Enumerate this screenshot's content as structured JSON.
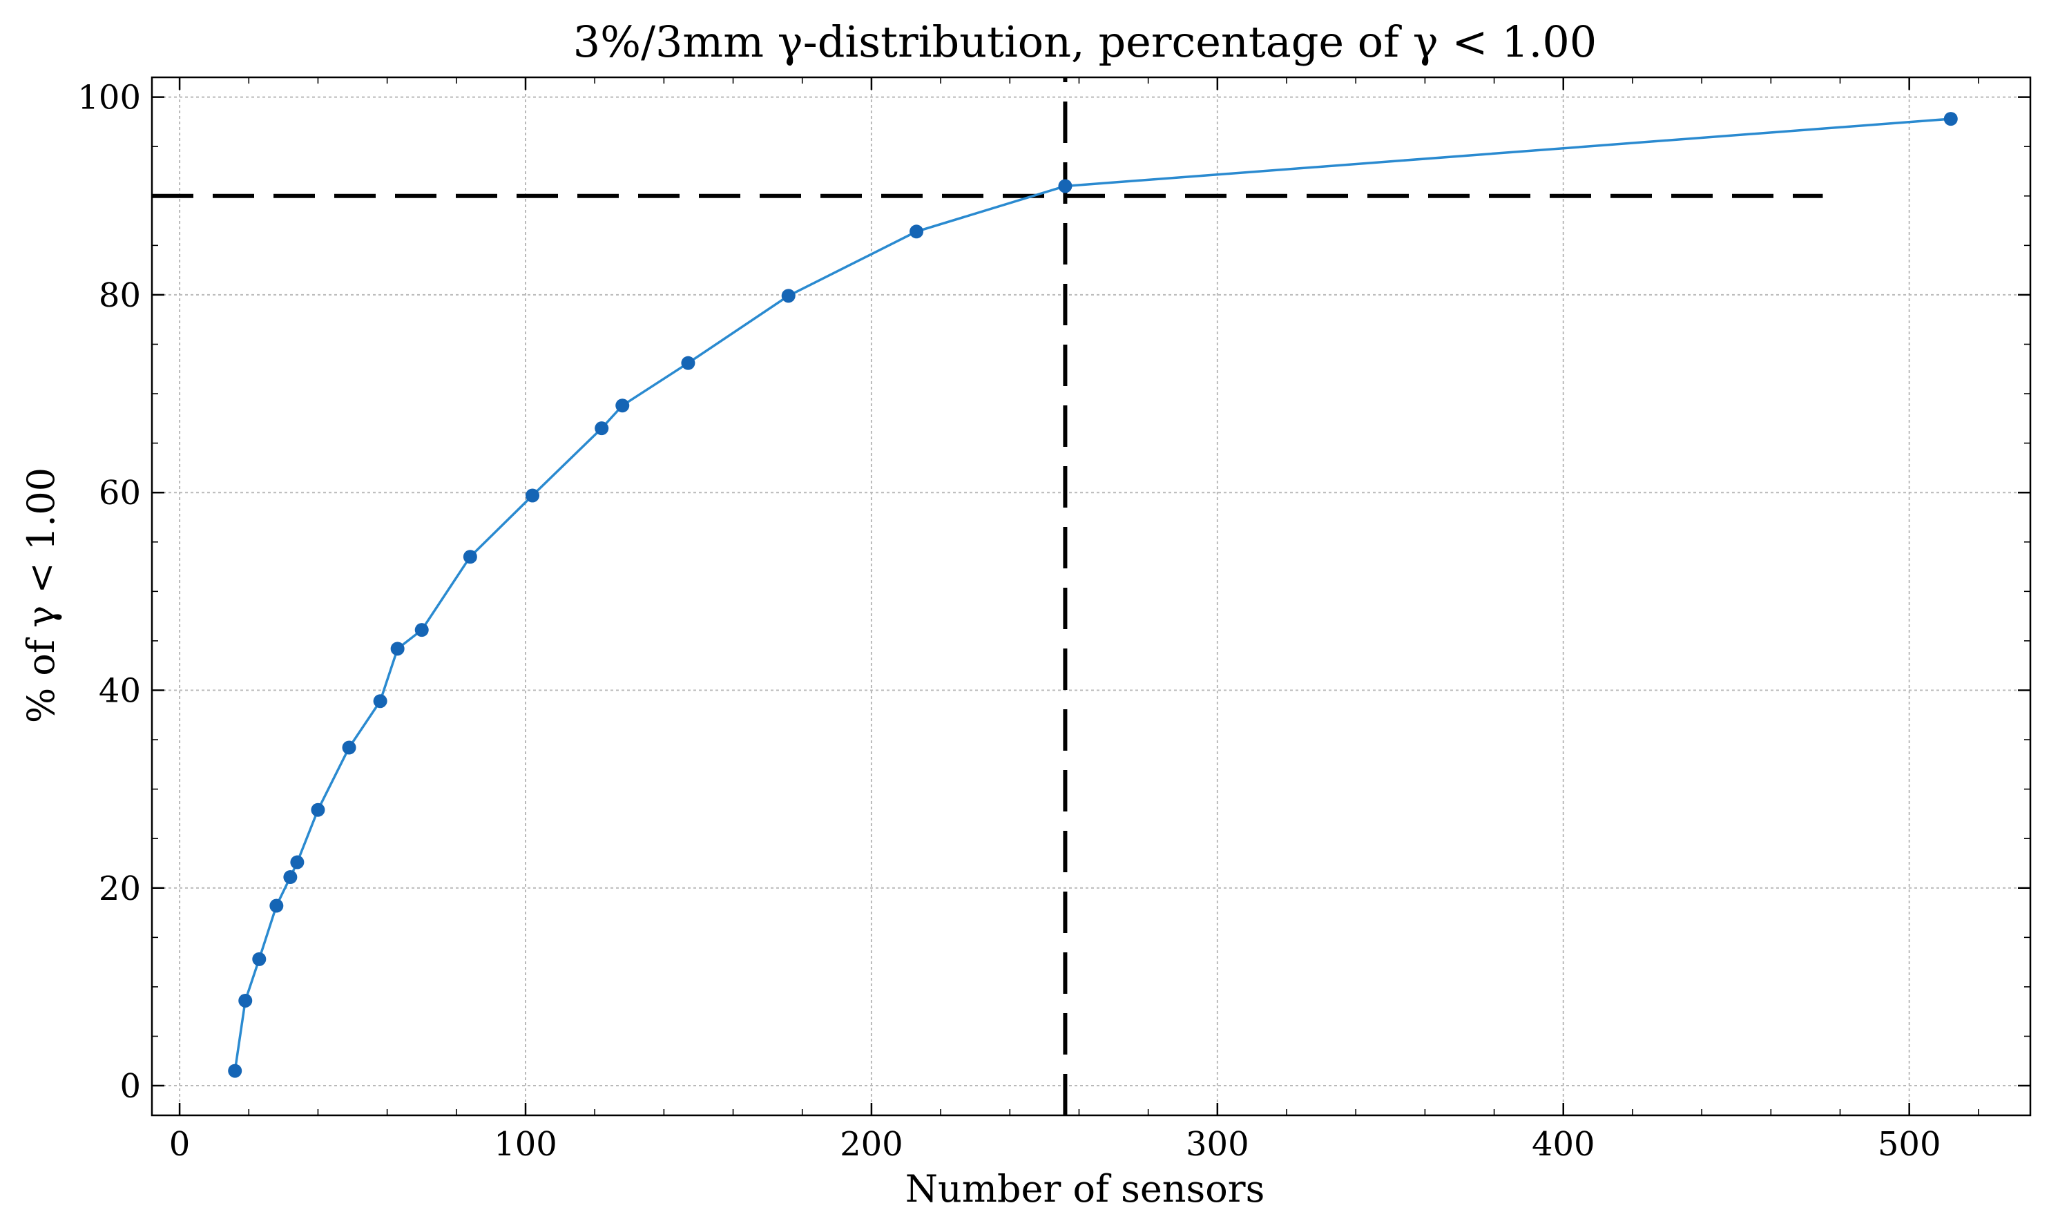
{
  "chart_data": {
    "type": "line",
    "title": "3%/3mm γ-distribution, percentage of γ < 1.00",
    "xlabel": "Number of sensors",
    "ylabel": "% of γ < 1.00",
    "xlim": [
      -8,
      535
    ],
    "ylim": [
      -3,
      102
    ],
    "xticks": [
      0,
      100,
      200,
      300,
      400,
      500
    ],
    "yticks": [
      0,
      20,
      40,
      60,
      80,
      100
    ],
    "xtick_labels": [
      "0",
      "100",
      "200",
      "300",
      "400",
      "500"
    ],
    "ytick_labels": [
      "0",
      "20",
      "40",
      "60",
      "80",
      "100"
    ],
    "grid": true,
    "series": [
      {
        "color": "#2a8ad0",
        "marker_color": "#1565b5",
        "x": [
          16,
          19,
          23,
          28,
          32,
          34,
          40,
          49,
          58,
          63,
          70,
          84,
          102,
          122,
          128,
          147,
          176,
          213,
          256,
          512
        ],
        "y": [
          1.5,
          8.6,
          12.8,
          18.2,
          21.1,
          22.6,
          27.9,
          34.2,
          38.9,
          44.2,
          46.1,
          53.5,
          59.7,
          66.5,
          68.8,
          73.1,
          79.9,
          86.4,
          91.0,
          97.8
        ]
      }
    ],
    "reference_lines": [
      {
        "orientation": "horizontal",
        "y": 90,
        "x_from": -8,
        "x_to": 475,
        "style": "dashed",
        "color": "#000000"
      },
      {
        "orientation": "vertical",
        "x": 256,
        "y_from": -3,
        "y_to": 102,
        "style": "dashed",
        "color": "#000000"
      }
    ]
  }
}
